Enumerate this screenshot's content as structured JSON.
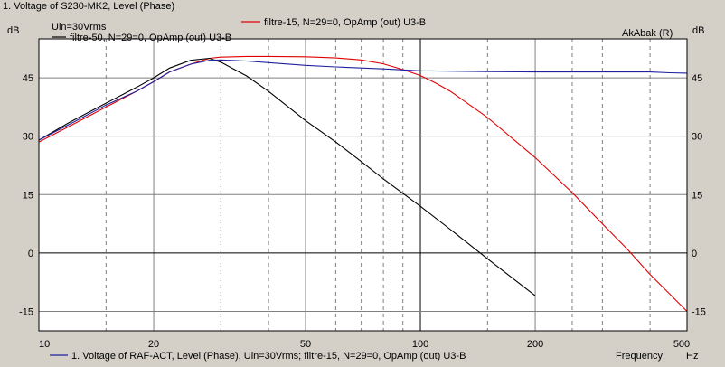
{
  "window": {
    "title": "1. Voltage of S230-MK2, Level (Phase)"
  },
  "chart_data": {
    "type": "line",
    "x_scale": "log",
    "y_scale": "linear",
    "xlim": [
      10,
      500
    ],
    "ylim": [
      -20,
      55
    ],
    "y_unit_left": "dB",
    "y_unit_right": "dB",
    "y_ticks": [
      -15,
      0,
      15,
      30,
      45
    ],
    "y_tick_labels": [
      "-15",
      "0",
      "15",
      "30",
      "45"
    ],
    "x_ticks": [
      10,
      20,
      50,
      100,
      200,
      500
    ],
    "x_tick_labels": [
      "10",
      "20",
      "50",
      "100",
      "200",
      "500"
    ],
    "x_minor_gridlines": [
      15,
      30,
      40,
      60,
      70,
      80,
      90,
      150,
      250,
      300,
      400
    ],
    "xlabel": "Frequency",
    "x_unit": "Hz",
    "input_annotation": "Uin=30Vrms",
    "right_axis_annotation": "AkAbak (R)",
    "grid": true,
    "colors": {
      "background": "#ffffff",
      "grid": "#808080",
      "zero_line": "#000000",
      "frame": "#d4d0c8"
    },
    "series": [
      {
        "name": "filtre-15, N=29=0, OpAmp (out) U3-B",
        "color": "#e00000",
        "x": [
          10,
          12,
          15,
          18,
          20,
          22,
          25,
          28,
          30,
          35,
          40,
          50,
          60,
          70,
          80,
          90,
          100,
          110,
          120,
          150,
          200,
          250,
          300,
          350,
          400,
          450,
          500
        ],
        "y": [
          28.5,
          32.5,
          37.5,
          41.5,
          44,
          46.5,
          48.5,
          50,
          50.3,
          50.5,
          50.5,
          50.4,
          50.1,
          49.6,
          48.6,
          47.1,
          45.6,
          43.6,
          41.5,
          34.8,
          24.5,
          15.5,
          7.5,
          0.8,
          -5.5,
          -10.5,
          -15
        ]
      },
      {
        "name": "filtre-50, N=29=0, OpAmp (out) U3-B",
        "color": "#000000",
        "x": [
          10,
          12,
          15,
          18,
          20,
          22,
          25,
          28,
          30,
          35,
          40,
          50,
          60,
          70,
          80,
          100,
          120,
          150,
          200
        ],
        "y": [
          29,
          33.5,
          38.5,
          42.5,
          45,
          47.5,
          49.5,
          50,
          49,
          45.5,
          41.5,
          34,
          28.5,
          23.5,
          19,
          12,
          6,
          -1.5,
          -11
        ]
      },
      {
        "name": "1. Voltage of RAF-ACT, Level (Phase), Uin=30Vrms; filtre-15, N=29=0, OpAmp (out) U3-B",
        "color": "#2020a0",
        "x": [
          10,
          12,
          15,
          18,
          20,
          22,
          25,
          28,
          30,
          35,
          40,
          50,
          60,
          80,
          100,
          150,
          200,
          300,
          400,
          450,
          500
        ],
        "y": [
          29,
          33,
          38,
          41.5,
          44,
          46.5,
          48.5,
          49.5,
          49.6,
          49.3,
          48.9,
          48.2,
          47.8,
          47.3,
          46.8,
          46.6,
          46.5,
          46.5,
          46.5,
          46.3,
          46.2
        ]
      }
    ]
  }
}
